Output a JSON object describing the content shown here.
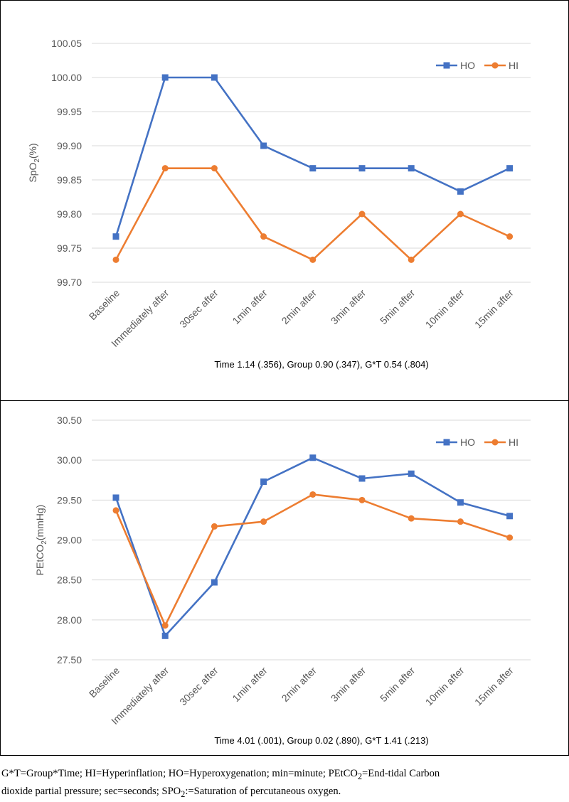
{
  "chart_data": [
    {
      "type": "line",
      "ylabel": "SpO2(%)",
      "ylabel_parts": {
        "main": "SpO",
        "sub": "2",
        "suffix": "(%)"
      },
      "ylim": [
        99.7,
        100.05
      ],
      "yticks": [
        "100.05",
        "100.00",
        "99.95",
        "99.90",
        "99.85",
        "99.80",
        "99.75",
        "99.70"
      ],
      "categories": [
        "Baseline",
        "Immediately after",
        "30sec after",
        "1min after",
        "2min after",
        "3min after",
        "5min after",
        "10min after",
        "15min after"
      ],
      "series": [
        {
          "name": "HO",
          "color": "#4472C4",
          "marker": "square",
          "values": [
            99.767,
            100.0,
            100.0,
            99.9,
            99.867,
            99.867,
            99.867,
            99.833,
            99.867
          ]
        },
        {
          "name": "HI",
          "color": "#ED7D31",
          "marker": "circle",
          "values": [
            99.733,
            99.867,
            99.867,
            99.767,
            99.733,
            99.8,
            99.733,
            99.8,
            99.767
          ]
        }
      ],
      "grid": true,
      "legend": "top-right",
      "stats": "Time 1.14 (.356), Group 0.90 (.347), G*T 0.54 (.804)"
    },
    {
      "type": "line",
      "ylabel": "PEtCO2(mmHg)",
      "ylabel_parts": {
        "main": "PEtCO",
        "sub": "2",
        "suffix": "(mmHg)"
      },
      "ylim": [
        27.5,
        30.5
      ],
      "yticks": [
        "30.50",
        "30.00",
        "29.50",
        "29.00",
        "28.50",
        "28.00",
        "27.50"
      ],
      "categories": [
        "Baseline",
        "Immediately after",
        "30sec after",
        "1min after",
        "2min after",
        "3min after",
        "5min after",
        "10min after",
        "15min after"
      ],
      "series": [
        {
          "name": "HO",
          "color": "#4472C4",
          "marker": "square",
          "values": [
            29.53,
            27.8,
            28.47,
            29.73,
            30.03,
            29.77,
            29.83,
            29.47,
            29.3
          ]
        },
        {
          "name": "HI",
          "color": "#ED7D31",
          "marker": "circle",
          "values": [
            29.37,
            27.93,
            29.17,
            29.23,
            29.57,
            29.5,
            29.27,
            29.23,
            29.03
          ]
        }
      ],
      "grid": true,
      "legend": "top-right",
      "stats": "Time 4.01 (.001), Group 0.02 (.890), G*T 1.41 (.213)"
    }
  ],
  "footnote": {
    "line1": "G*T=Group*Time; HI=Hyperinflation; HO=Hyperoxygenation; min=minute; PEtCO",
    "line1_sub": "2",
    "line1_end": "=End-tidal Carbon",
    "line2": "dioxide partial pressure; sec=seconds; SPO",
    "line2_sub": "2",
    "line2_end": ":=Saturation of percutaneous oxygen."
  }
}
